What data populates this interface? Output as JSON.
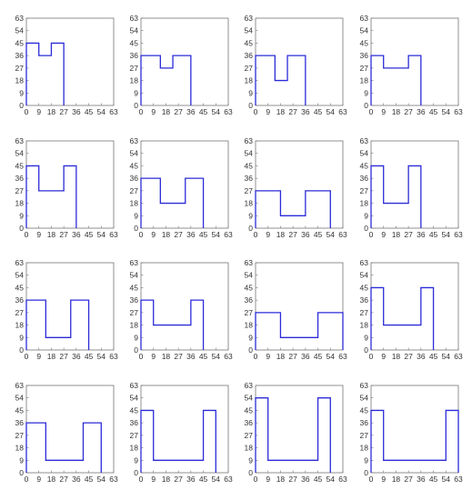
{
  "figure": {
    "colors": {
      "line": "#2b2bd8",
      "axis": "#777777",
      "text": "#333333",
      "background": "#ffffff"
    }
  },
  "chart_data": [
    {
      "type": "line",
      "grid": false,
      "xlim": [
        0,
        63
      ],
      "ylim": [
        0,
        63
      ],
      "xticks": [
        "0",
        "9",
        "18",
        "27",
        "36",
        "45",
        "54",
        "63"
      ],
      "yticks": [
        "0",
        "9",
        "18",
        "27",
        "36",
        "45",
        "54",
        "63"
      ],
      "series": [
        {
          "x": [
            0,
            0,
            9,
            9,
            18,
            18,
            27,
            27
          ],
          "y": [
            0,
            45,
            45,
            36,
            36,
            45,
            45,
            0
          ]
        }
      ]
    },
    {
      "type": "line",
      "grid": false,
      "xlim": [
        0,
        63
      ],
      "ylim": [
        0,
        63
      ],
      "xticks": [
        "0",
        "9",
        "18",
        "27",
        "36",
        "45",
        "54",
        "63"
      ],
      "yticks": [
        "0",
        "9",
        "18",
        "27",
        "36",
        "45",
        "54",
        "63"
      ],
      "series": [
        {
          "x": [
            0,
            0,
            14,
            14,
            23,
            23,
            36,
            36
          ],
          "y": [
            0,
            36,
            36,
            27,
            27,
            36,
            36,
            0
          ]
        }
      ]
    },
    {
      "type": "line",
      "grid": false,
      "xlim": [
        0,
        63
      ],
      "ylim": [
        0,
        63
      ],
      "xticks": [
        "0",
        "9",
        "18",
        "27",
        "36",
        "45",
        "54",
        "63"
      ],
      "yticks": [
        "0",
        "9",
        "18",
        "27",
        "36",
        "45",
        "54",
        "63"
      ],
      "series": [
        {
          "x": [
            0,
            0,
            14,
            14,
            23,
            23,
            36,
            36
          ],
          "y": [
            0,
            36,
            36,
            18,
            18,
            36,
            36,
            0
          ]
        }
      ]
    },
    {
      "type": "line",
      "grid": false,
      "xlim": [
        0,
        63
      ],
      "ylim": [
        0,
        63
      ],
      "xticks": [
        "0",
        "9",
        "18",
        "27",
        "36",
        "45",
        "54",
        "63"
      ],
      "yticks": [
        "0",
        "9",
        "18",
        "27",
        "36",
        "45",
        "54",
        "63"
      ],
      "series": [
        {
          "x": [
            0,
            0,
            9,
            9,
            27,
            27,
            36,
            36
          ],
          "y": [
            0,
            36,
            36,
            27,
            27,
            36,
            36,
            0
          ]
        }
      ]
    },
    {
      "type": "line",
      "grid": false,
      "xlim": [
        0,
        63
      ],
      "ylim": [
        0,
        63
      ],
      "xticks": [
        "0",
        "9",
        "18",
        "27",
        "36",
        "45",
        "54",
        "63"
      ],
      "yticks": [
        "0",
        "9",
        "18",
        "27",
        "36",
        "45",
        "54",
        "63"
      ],
      "series": [
        {
          "x": [
            0,
            0,
            9,
            9,
            27,
            27,
            36,
            36
          ],
          "y": [
            0,
            45,
            45,
            27,
            27,
            45,
            45,
            0
          ]
        }
      ]
    },
    {
      "type": "line",
      "grid": false,
      "xlim": [
        0,
        63
      ],
      "ylim": [
        0,
        63
      ],
      "xticks": [
        "0",
        "9",
        "18",
        "27",
        "36",
        "45",
        "54",
        "63"
      ],
      "yticks": [
        "0",
        "9",
        "18",
        "27",
        "36",
        "45",
        "54",
        "63"
      ],
      "series": [
        {
          "x": [
            0,
            0,
            14,
            14,
            32,
            32,
            45,
            45
          ],
          "y": [
            0,
            36,
            36,
            18,
            18,
            36,
            36,
            0
          ]
        }
      ]
    },
    {
      "type": "line",
      "grid": false,
      "xlim": [
        0,
        63
      ],
      "ylim": [
        0,
        63
      ],
      "xticks": [
        "0",
        "9",
        "18",
        "27",
        "36",
        "45",
        "54",
        "63"
      ],
      "yticks": [
        "0",
        "9",
        "18",
        "27",
        "36",
        "45",
        "54",
        "63"
      ],
      "series": [
        {
          "x": [
            0,
            0,
            18,
            18,
            36,
            36,
            54,
            54
          ],
          "y": [
            0,
            27,
            27,
            9,
            9,
            27,
            27,
            0
          ]
        }
      ]
    },
    {
      "type": "line",
      "grid": false,
      "xlim": [
        0,
        63
      ],
      "ylim": [
        0,
        63
      ],
      "xticks": [
        "0",
        "9",
        "18",
        "27",
        "36",
        "45",
        "54",
        "63"
      ],
      "yticks": [
        "0",
        "9",
        "18",
        "27",
        "36",
        "45",
        "54",
        "63"
      ],
      "series": [
        {
          "x": [
            0,
            0,
            9,
            9,
            27,
            27,
            36,
            36
          ],
          "y": [
            0,
            45,
            45,
            18,
            18,
            45,
            45,
            0
          ]
        }
      ]
    },
    {
      "type": "line",
      "grid": false,
      "xlim": [
        0,
        63
      ],
      "ylim": [
        0,
        63
      ],
      "xticks": [
        "0",
        "9",
        "18",
        "27",
        "36",
        "45",
        "54",
        "63"
      ],
      "yticks": [
        "0",
        "9",
        "18",
        "27",
        "36",
        "45",
        "54",
        "63"
      ],
      "series": [
        {
          "x": [
            0,
            0,
            14,
            14,
            32,
            32,
            45,
            45
          ],
          "y": [
            0,
            36,
            36,
            9,
            9,
            36,
            36,
            0
          ]
        }
      ]
    },
    {
      "type": "line",
      "grid": false,
      "xlim": [
        0,
        63
      ],
      "ylim": [
        0,
        63
      ],
      "xticks": [
        "0",
        "9",
        "18",
        "27",
        "36",
        "45",
        "54",
        "63"
      ],
      "yticks": [
        "0",
        "9",
        "18",
        "27",
        "36",
        "45",
        "54",
        "63"
      ],
      "series": [
        {
          "x": [
            0,
            0,
            9,
            9,
            36,
            36,
            45,
            45
          ],
          "y": [
            0,
            36,
            36,
            18,
            18,
            36,
            36,
            0
          ]
        }
      ]
    },
    {
      "type": "line",
      "grid": false,
      "xlim": [
        0,
        63
      ],
      "ylim": [
        0,
        63
      ],
      "xticks": [
        "0",
        "9",
        "18",
        "27",
        "36",
        "45",
        "54",
        "63"
      ],
      "yticks": [
        "0",
        "9",
        "18",
        "27",
        "36",
        "45",
        "54",
        "63"
      ],
      "series": [
        {
          "x": [
            0,
            0,
            18,
            18,
            45,
            45,
            63,
            63
          ],
          "y": [
            0,
            27,
            27,
            9,
            9,
            27,
            27,
            0
          ]
        }
      ]
    },
    {
      "type": "line",
      "grid": false,
      "xlim": [
        0,
        63
      ],
      "ylim": [
        0,
        63
      ],
      "xticks": [
        "0",
        "9",
        "18",
        "27",
        "36",
        "45",
        "54",
        "63"
      ],
      "yticks": [
        "0",
        "9",
        "18",
        "27",
        "36",
        "45",
        "54",
        "63"
      ],
      "series": [
        {
          "x": [
            0,
            0,
            9,
            9,
            36,
            36,
            45,
            45
          ],
          "y": [
            0,
            45,
            45,
            18,
            18,
            45,
            45,
            0
          ]
        }
      ]
    },
    {
      "type": "line",
      "grid": false,
      "xlim": [
        0,
        63
      ],
      "ylim": [
        0,
        63
      ],
      "xticks": [
        "0",
        "9",
        "18",
        "27",
        "36",
        "45",
        "54",
        "63"
      ],
      "yticks": [
        "0",
        "9",
        "18",
        "27",
        "36",
        "45",
        "54",
        "63"
      ],
      "series": [
        {
          "x": [
            0,
            0,
            14,
            14,
            41,
            41,
            54,
            54
          ],
          "y": [
            0,
            36,
            36,
            9,
            9,
            36,
            36,
            0
          ]
        }
      ]
    },
    {
      "type": "line",
      "grid": false,
      "xlim": [
        0,
        63
      ],
      "ylim": [
        0,
        63
      ],
      "xticks": [
        "0",
        "9",
        "18",
        "27",
        "36",
        "45",
        "54",
        "63"
      ],
      "yticks": [
        "0",
        "9",
        "18",
        "27",
        "36",
        "45",
        "54",
        "63"
      ],
      "series": [
        {
          "x": [
            0,
            0,
            9,
            9,
            45,
            45,
            54,
            54
          ],
          "y": [
            0,
            45,
            45,
            9,
            9,
            45,
            45,
            0
          ]
        }
      ]
    },
    {
      "type": "line",
      "grid": false,
      "xlim": [
        0,
        63
      ],
      "ylim": [
        0,
        63
      ],
      "xticks": [
        "0",
        "9",
        "18",
        "27",
        "36",
        "45",
        "54",
        "63"
      ],
      "yticks": [
        "0",
        "9",
        "18",
        "27",
        "36",
        "45",
        "54",
        "63"
      ],
      "series": [
        {
          "x": [
            0,
            0,
            9,
            9,
            45,
            45,
            54,
            54
          ],
          "y": [
            0,
            54,
            54,
            9,
            9,
            54,
            54,
            0
          ]
        }
      ]
    },
    {
      "type": "line",
      "grid": false,
      "xlim": [
        0,
        63
      ],
      "ylim": [
        0,
        63
      ],
      "xticks": [
        "0",
        "9",
        "18",
        "27",
        "36",
        "45",
        "54",
        "63"
      ],
      "yticks": [
        "0",
        "9",
        "18",
        "27",
        "36",
        "45",
        "54",
        "63"
      ],
      "series": [
        {
          "x": [
            0,
            0,
            9,
            9,
            54,
            54,
            63,
            63
          ],
          "y": [
            0,
            45,
            45,
            9,
            9,
            45,
            45,
            0
          ]
        }
      ]
    }
  ]
}
